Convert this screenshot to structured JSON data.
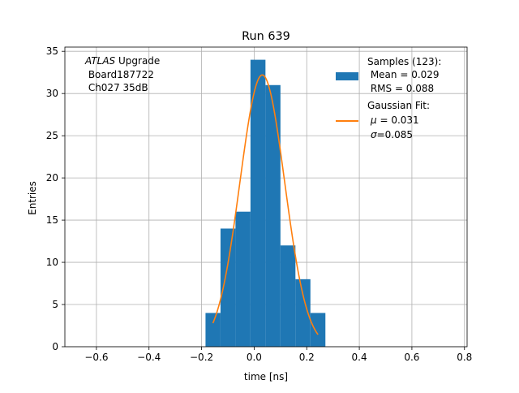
{
  "chart_data": {
    "type": "bar",
    "title": "Run 639",
    "xlabel": "time [ns]",
    "ylabel": "Entries",
    "xlim": [
      -0.72,
      0.81
    ],
    "ylim": [
      0,
      35.5
    ],
    "grid": true,
    "xticks": [
      -0.6,
      -0.4,
      -0.2,
      0.0,
      0.2,
      0.4,
      0.6,
      0.8
    ],
    "xtick_labels": [
      "−0.6",
      "−0.4",
      "−0.2",
      "0.0",
      "0.2",
      "0.4",
      "0.6",
      "0.8"
    ],
    "yticks": [
      0,
      5,
      10,
      15,
      20,
      25,
      30,
      35
    ],
    "ytick_labels": [
      "0",
      "5",
      "10",
      "15",
      "20",
      "25",
      "30",
      "35"
    ],
    "histogram": {
      "bin_edges": [
        -0.185,
        -0.128,
        -0.071,
        -0.014,
        0.043,
        0.1,
        0.157,
        0.214,
        0.271
      ],
      "counts": [
        4,
        14,
        16,
        34,
        31,
        12,
        8,
        4
      ],
      "color": "#1f77b4"
    },
    "fit": {
      "mu": 0.031,
      "sigma": 0.085,
      "amplitude": 32.2,
      "x_range": [
        -0.157,
        0.243
      ],
      "color": "#ff7f0e"
    },
    "annotation": {
      "italic": "ATLAS",
      "rest": " Upgrade",
      "line2": " Board187722",
      "line3": " Ch027 35dB"
    },
    "legend": {
      "placement": "top-right",
      "samples": [
        "Samples (123):",
        " Mean = 0.029",
        " RMS = 0.088"
      ],
      "fit": [
        "Gaussian Fit:"
      ],
      "fit_mu_symbol": "μ",
      "fit_mu_text": " = 0.031",
      "fit_sigma_symbol": "σ",
      "fit_sigma_text": "=0.085"
    }
  }
}
